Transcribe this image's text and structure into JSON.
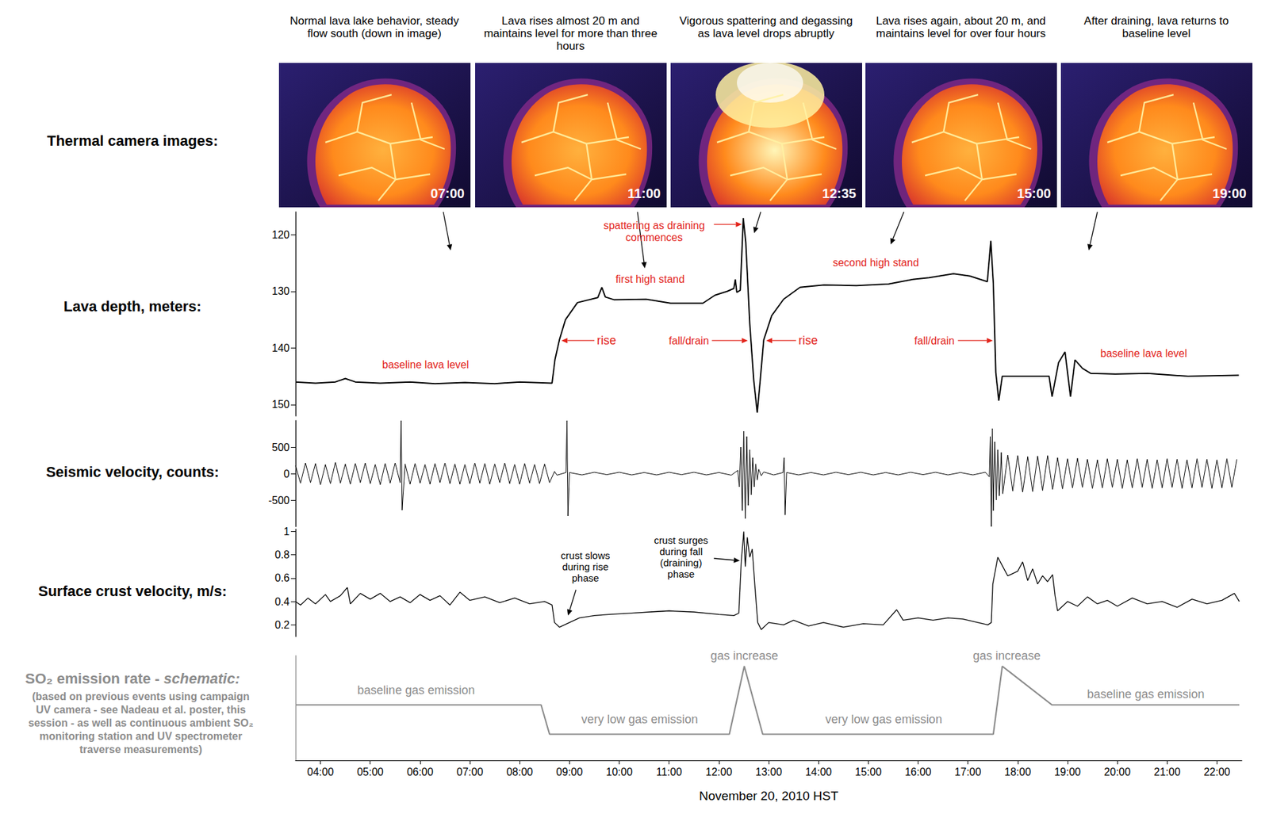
{
  "thermal_camera_images": {
    "label": "Thermal camera images:",
    "frames": [
      {
        "caption": "Normal lava lake behavior, steady flow south (down in image)",
        "time": "07:00"
      },
      {
        "caption": "Lava rises almost 20 m and maintains level for more than three hours",
        "time": "11:00"
      },
      {
        "caption": "Vigorous spattering and degassing as lava level drops abruptly",
        "time": "12:35"
      },
      {
        "caption": "Lava rises again, about 20 m, and maintains level for over four hours",
        "time": "15:00"
      },
      {
        "caption": "After draining, lava returns to baseline level",
        "time": "19:00"
      }
    ]
  },
  "chart_data": [
    {
      "type": "line",
      "title": "Lava depth, meters:",
      "color": "#000000",
      "xlim": [
        3.5,
        22.5
      ],
      "ylim": [
        152,
        116
      ],
      "yticks": [
        120,
        130,
        140,
        150
      ],
      "grid": false,
      "tick_labels": "y",
      "annotations": [
        "spattering as draining commences",
        "first high stand",
        "rise",
        "fall/drain",
        "rise",
        "second high stand",
        "fall/drain",
        "baseline lava level",
        "baseline lava level"
      ],
      "x": [
        3.5,
        3.9,
        4.3,
        4.5,
        4.7,
        5.2,
        5.8,
        6.3,
        6.9,
        7.5,
        8.0,
        8.65,
        8.71,
        8.8,
        8.92,
        9.16,
        9.57,
        9.65,
        9.72,
        9.9,
        10.54,
        11.03,
        11.68,
        11.92,
        12.17,
        12.3,
        12.33,
        12.36,
        12.43,
        12.49,
        12.54,
        12.62,
        12.7,
        12.77,
        12.83,
        12.9,
        13.06,
        13.3,
        13.63,
        14.11,
        14.76,
        15.41,
        15.9,
        16.22,
        16.71,
        17.04,
        17.39,
        17.46,
        17.51,
        17.56,
        17.62,
        17.69,
        18.17,
        18.63,
        18.69,
        18.82,
        18.95,
        19.06,
        19.15,
        19.3,
        19.47,
        19.96,
        20.61,
        21.42,
        22.44
      ],
      "values": [
        146.0,
        146.2,
        146.0,
        145.4,
        146.0,
        146.2,
        146.0,
        146.3,
        146.1,
        146.3,
        146.0,
        146.2,
        142.0,
        138.5,
        135.0,
        132.0,
        131.1,
        129.3,
        131.0,
        131.5,
        131.4,
        132.1,
        132.1,
        130.7,
        130.0,
        129.5,
        127.9,
        130.2,
        129.8,
        117.1,
        121.4,
        135.7,
        145.7,
        151.4,
        145.7,
        138.6,
        134.3,
        131.4,
        129.3,
        128.9,
        129.0,
        128.7,
        127.9,
        127.6,
        126.9,
        127.3,
        128.3,
        121.1,
        128.6,
        144.3,
        149.3,
        145.0,
        145.0,
        145.0,
        148.6,
        142.6,
        140.7,
        148.6,
        142.1,
        143.6,
        144.5,
        144.6,
        144.5,
        145.0,
        144.8
      ]
    },
    {
      "type": "line",
      "title": "Seismic velocity, counts:",
      "color": "#000000",
      "xlim": [
        3.5,
        22.5
      ],
      "ylim": [
        -1000,
        1000
      ],
      "yticks": [
        -500,
        0,
        500
      ],
      "grid": false,
      "tick_labels": "y",
      "x": [
        3.5,
        3.6,
        3.7,
        3.8,
        3.9,
        4.0,
        4.1,
        4.2,
        4.3,
        4.4,
        4.5,
        4.6,
        4.7,
        4.8,
        4.9,
        5.0,
        5.1,
        5.2,
        5.3,
        5.4,
        5.5,
        5.6,
        5.62,
        5.64,
        5.7,
        5.8,
        5.9,
        6.0,
        6.1,
        6.2,
        6.3,
        6.4,
        6.5,
        6.6,
        6.7,
        6.8,
        6.9,
        7.0,
        7.1,
        7.2,
        7.3,
        7.4,
        7.5,
        7.6,
        7.7,
        7.8,
        7.9,
        8.0,
        8.1,
        8.2,
        8.3,
        8.4,
        8.5,
        8.6,
        8.7,
        8.75,
        8.93,
        8.95,
        8.97,
        9.0,
        9.25,
        9.5,
        9.75,
        10.0,
        10.25,
        10.5,
        10.75,
        11.0,
        11.25,
        11.5,
        11.75,
        12.0,
        12.25,
        12.38,
        12.41,
        12.44,
        12.47,
        12.5,
        12.53,
        12.56,
        12.59,
        12.62,
        12.65,
        12.68,
        12.71,
        12.74,
        12.77,
        12.8,
        12.85,
        12.9,
        13.1,
        13.29,
        13.31,
        13.33,
        13.36,
        13.6,
        13.85,
        14.1,
        14.35,
        14.6,
        14.85,
        15.1,
        15.35,
        15.6,
        15.85,
        16.1,
        16.35,
        16.6,
        16.85,
        17.1,
        17.35,
        17.43,
        17.45,
        17.47,
        17.49,
        17.51,
        17.54,
        17.57,
        17.6,
        17.63,
        17.67,
        17.7,
        17.8,
        17.9,
        18.0,
        18.1,
        18.2,
        18.3,
        18.4,
        18.5,
        18.6,
        18.7,
        18.8,
        18.9,
        19.0,
        19.1,
        19.2,
        19.3,
        19.4,
        19.5,
        19.6,
        19.7,
        19.8,
        19.9,
        20.0,
        20.1,
        20.2,
        20.3,
        20.4,
        20.5,
        20.6,
        20.7,
        20.8,
        20.9,
        21.0,
        21.1,
        21.2,
        21.3,
        21.4,
        21.5,
        21.6,
        21.7,
        21.8,
        21.9,
        22.0,
        22.1,
        22.2,
        22.3,
        22.4
      ],
      "values": [
        150,
        -180,
        200,
        -170,
        190,
        -210,
        170,
        -190,
        210,
        -180,
        180,
        -200,
        190,
        -170,
        200,
        -190,
        170,
        -210,
        190,
        -180,
        200,
        -170,
        1000,
        -690,
        180,
        -200,
        190,
        -180,
        170,
        -200,
        190,
        -170,
        200,
        -190,
        180,
        -200,
        170,
        -190,
        200,
        -180,
        190,
        -200,
        180,
        -170,
        200,
        -190,
        170,
        -200,
        190,
        -180,
        170,
        -190,
        180,
        -170,
        40,
        -30,
        20,
        1000,
        -800,
        20,
        -25,
        25,
        -20,
        25,
        -25,
        20,
        -25,
        25,
        -20,
        25,
        -25,
        20,
        -30,
        60,
        -250,
        500,
        -700,
        800,
        -850,
        700,
        -600,
        450,
        -400,
        300,
        -250,
        180,
        -120,
        80,
        -40,
        30,
        -25,
        20,
        300,
        -780,
        20,
        -25,
        20,
        -25,
        25,
        -20,
        25,
        -25,
        20,
        -25,
        25,
        -20,
        25,
        -25,
        20,
        -25,
        25,
        -60,
        700,
        -1000,
        850,
        -700,
        600,
        -500,
        450,
        -420,
        400,
        -380,
        350,
        -330,
        340,
        -350,
        320,
        -340,
        330,
        -320,
        340,
        -300,
        300,
        -290,
        280,
        -270,
        290,
        -260,
        270,
        -280,
        260,
        -270,
        280,
        -260,
        270,
        -280,
        260,
        -270,
        280,
        -260,
        270,
        -280,
        260,
        -270,
        280,
        -260,
        270,
        -280,
        260,
        -270,
        280,
        -260,
        270,
        -280,
        260,
        -270,
        280,
        -260,
        270
      ]
    },
    {
      "type": "line",
      "title": "Surface crust velocity, m/s:",
      "color": "#000000",
      "xlim": [
        3.5,
        22.5
      ],
      "ylim": [
        0.1,
        1.02
      ],
      "yticks": [
        0.2,
        0.4,
        0.6,
        0.8,
        1
      ],
      "grid": false,
      "tick_labels": "y",
      "annotations": [
        "crust slows during rise phase",
        "crust surges during fall (draining) phase"
      ],
      "x": [
        3.5,
        3.6,
        3.75,
        3.9,
        4.1,
        4.2,
        4.4,
        4.54,
        4.6,
        4.8,
        5.0,
        5.2,
        5.4,
        5.6,
        5.8,
        6.0,
        6.2,
        6.4,
        6.6,
        6.8,
        7.0,
        7.3,
        7.6,
        7.9,
        8.2,
        8.5,
        8.65,
        8.7,
        8.8,
        9.0,
        9.2,
        9.5,
        9.8,
        10.2,
        10.6,
        11.0,
        11.5,
        12.0,
        12.3,
        12.4,
        12.45,
        12.5,
        12.53,
        12.57,
        12.62,
        12.67,
        12.72,
        12.78,
        12.85,
        13.0,
        13.3,
        13.5,
        13.8,
        14.1,
        14.5,
        14.9,
        15.3,
        15.57,
        15.7,
        16.0,
        16.3,
        16.6,
        16.9,
        17.2,
        17.4,
        17.47,
        17.5,
        17.6,
        17.7,
        17.8,
        18.0,
        18.1,
        18.2,
        18.3,
        18.4,
        18.5,
        18.6,
        18.7,
        18.75,
        18.8,
        19.0,
        19.2,
        19.4,
        19.6,
        19.8,
        20.0,
        20.3,
        20.6,
        20.9,
        21.2,
        21.5,
        21.8,
        22.1,
        22.35,
        22.45
      ],
      "values": [
        0.4,
        0.37,
        0.43,
        0.38,
        0.46,
        0.4,
        0.45,
        0.52,
        0.38,
        0.47,
        0.42,
        0.47,
        0.4,
        0.44,
        0.39,
        0.46,
        0.41,
        0.45,
        0.37,
        0.48,
        0.41,
        0.44,
        0.39,
        0.43,
        0.38,
        0.4,
        0.37,
        0.22,
        0.18,
        0.22,
        0.26,
        0.28,
        0.29,
        0.3,
        0.31,
        0.32,
        0.31,
        0.29,
        0.28,
        0.3,
        0.75,
        1.0,
        0.7,
        0.95,
        0.78,
        0.85,
        0.55,
        0.22,
        0.16,
        0.22,
        0.2,
        0.24,
        0.19,
        0.22,
        0.18,
        0.21,
        0.2,
        0.33,
        0.24,
        0.26,
        0.24,
        0.26,
        0.25,
        0.22,
        0.2,
        0.22,
        0.55,
        0.78,
        0.7,
        0.62,
        0.66,
        0.74,
        0.58,
        0.68,
        0.55,
        0.62,
        0.57,
        0.63,
        0.45,
        0.32,
        0.4,
        0.36,
        0.44,
        0.38,
        0.41,
        0.36,
        0.43,
        0.38,
        0.4,
        0.35,
        0.42,
        0.38,
        0.41,
        0.47,
        0.4
      ]
    },
    {
      "type": "line",
      "title": "SO₂ emission rate - schematic:",
      "subtitle": "(based on previous events using campaign UV camera - see Nadeau et al. poster, this session - as well as continuous ambient SO₂ monitoring station and UV spectrometer traverse measurements)",
      "color": "#8c8c8c",
      "xlabel": "November 20, 2010 HST",
      "xlim": [
        3.5,
        22.5
      ],
      "ylim": [
        0,
        1
      ],
      "yticks": [],
      "xticks": [
        {
          "value": 4,
          "label": "04:00"
        },
        {
          "value": 5,
          "label": "05:00"
        },
        {
          "value": 6,
          "label": "06:00"
        },
        {
          "value": 7,
          "label": "07:00"
        },
        {
          "value": 8,
          "label": "08:00"
        },
        {
          "value": 9,
          "label": "09:00"
        },
        {
          "value": 10,
          "label": "10:00"
        },
        {
          "value": 11,
          "label": "11:00"
        },
        {
          "value": 12,
          "label": "12:00"
        },
        {
          "value": 13,
          "label": "13:00"
        },
        {
          "value": 14,
          "label": "14:00"
        },
        {
          "value": 15,
          "label": "15:00"
        },
        {
          "value": 16,
          "label": "16:00"
        },
        {
          "value": 17,
          "label": "17:00"
        },
        {
          "value": 18,
          "label": "18:00"
        },
        {
          "value": 19,
          "label": "19:00"
        },
        {
          "value": 20,
          "label": "20:00"
        },
        {
          "value": 21,
          "label": "21:00"
        },
        {
          "value": 22,
          "label": "22:00"
        }
      ],
      "grid": false,
      "tick_labels": "x",
      "annotations": [
        "baseline gas emission",
        "very low gas emission",
        "gas increase",
        "very low gas emission",
        "gas increase",
        "baseline gas emission"
      ],
      "x": [
        3.5,
        8.43,
        8.6,
        12.21,
        12.51,
        12.88,
        17.51,
        17.69,
        18.69,
        22.45
      ],
      "values": [
        0.53,
        0.53,
        0.25,
        0.25,
        0.9,
        0.25,
        0.25,
        0.9,
        0.53,
        0.53
      ]
    }
  ]
}
